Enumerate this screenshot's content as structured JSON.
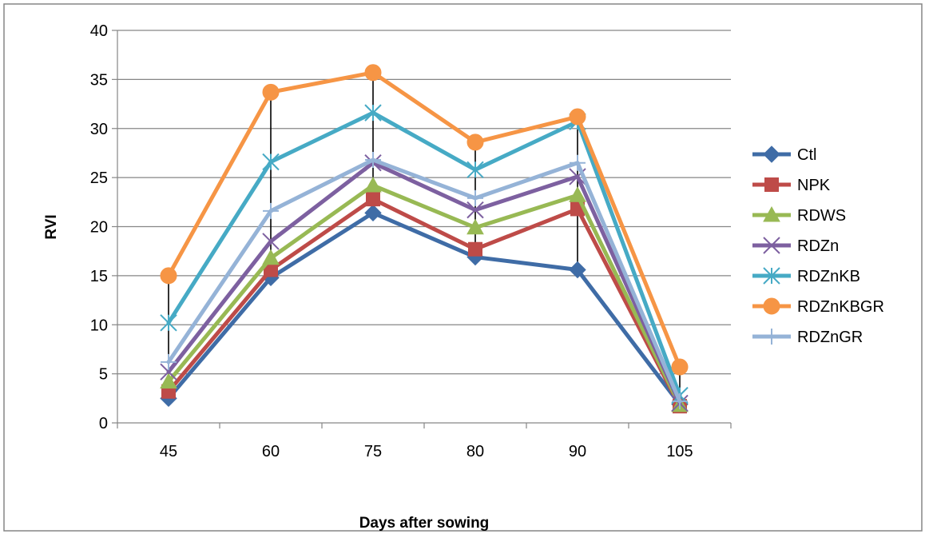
{
  "chart_data": {
    "type": "line",
    "title": "",
    "xlabel": "Days after sowing",
    "ylabel": "RVI",
    "categories": [
      "45",
      "60",
      "75",
      "80",
      "90",
      "105"
    ],
    "ylim": [
      0,
      40
    ],
    "yticks": [
      0,
      5,
      10,
      15,
      20,
      25,
      30,
      35,
      40
    ],
    "grid": "horizontal",
    "legend": "right",
    "error_bars": "vertical lines spanning min to max value at each category",
    "series": [
      {
        "name": "Ctl",
        "color": "#3F6CA6",
        "marker": "diamond",
        "values": [
          2.5,
          14.8,
          21.4,
          16.9,
          15.6,
          1.9
        ]
      },
      {
        "name": "NPK",
        "color": "#BE4B48",
        "marker": "square",
        "values": [
          3.2,
          15.6,
          22.8,
          17.7,
          21.8,
          1.7
        ]
      },
      {
        "name": "RDWS",
        "color": "#98B954",
        "marker": "triangle",
        "values": [
          4.2,
          16.8,
          24.2,
          19.9,
          23.2,
          1.8
        ]
      },
      {
        "name": "RDZn",
        "color": "#7D60A0",
        "marker": "x",
        "values": [
          5.2,
          18.5,
          26.5,
          21.7,
          25.1,
          2.0
        ]
      },
      {
        "name": "RDZnKB",
        "color": "#46AAC5",
        "marker": "star",
        "values": [
          10.2,
          26.6,
          31.6,
          25.8,
          30.7,
          2.8
        ]
      },
      {
        "name": "RDZnKBGR",
        "color": "#F69545",
        "marker": "circle",
        "values": [
          15.0,
          33.7,
          35.7,
          28.6,
          31.2,
          5.7
        ]
      },
      {
        "name": "RDZnGR",
        "color": "#95B3D7",
        "marker": "plus",
        "values": [
          6.2,
          21.6,
          26.8,
          22.9,
          26.5,
          2.2
        ]
      }
    ]
  }
}
